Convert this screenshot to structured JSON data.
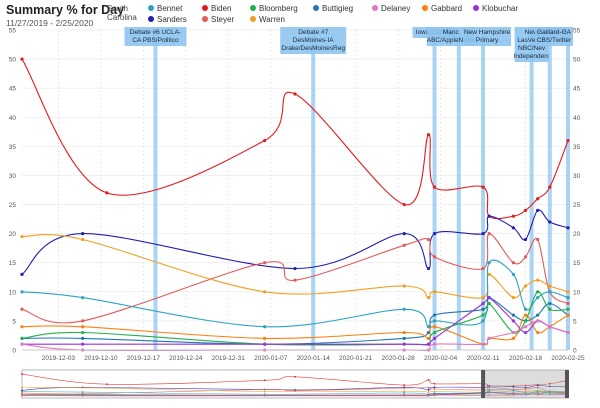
{
  "header": {
    "title": "Summary % for Day",
    "subtitle": "11/27/2019 - 2/25/2020",
    "state": "South Carolina"
  },
  "colors": {
    "Bennet": "#2aa4c4",
    "Biden": "#e31a1c",
    "Bloomberg": "#22b04a",
    "Buttigieg": "#1f77b4",
    "Delaney": "#e377c2",
    "Gabbard": "#ff7f0e",
    "Klobuchar": "#9b30d9",
    "Sanders": "#1f1fb4",
    "Steyer": "#e35a5a",
    "Warren": "#f0a020",
    "event_bar": "#8ec4f0"
  },
  "legend": [
    {
      "name": "Bennet",
      "color": "#2aa4c4"
    },
    {
      "name": "Biden",
      "color": "#e31a1c"
    },
    {
      "name": "Bloomberg",
      "color": "#22b04a"
    },
    {
      "name": "Buttigieg",
      "color": "#1f77b4"
    },
    {
      "name": "Delaney",
      "color": "#e377c2"
    },
    {
      "name": "Gabbard",
      "color": "#ff7f0e"
    },
    {
      "name": "Klobuchar",
      "color": "#9b30d9"
    },
    {
      "name": "Sanders",
      "color": "#1f1fb4"
    },
    {
      "name": "Steyer",
      "color": "#e35a5a"
    },
    {
      "name": "Warren",
      "color": "#f0a020"
    }
  ],
  "chart_data": {
    "type": "line",
    "title": "Summary % for Day",
    "subtitle": "11/27/2019 - 2/25/2020",
    "xlabel": "",
    "ylabel": "",
    "ylim": [
      0,
      55
    ],
    "y_ticks": [
      0,
      5,
      10,
      15,
      20,
      25,
      30,
      35,
      40,
      45,
      50,
      55
    ],
    "x_range": [
      "2019-11-27",
      "2020-02-25"
    ],
    "x_ticks": [
      "2019-12-03",
      "2019-12-10",
      "2019-12-17",
      "2019-12-24",
      "2019-12-31",
      "2020-01-07",
      "2020-01-14",
      "2020-01-21",
      "2020-01-28",
      "2020-02-04",
      "2020-02-11",
      "2020-02-18",
      "2020-02-25"
    ],
    "grid": true,
    "legend_position": "top",
    "events": [
      {
        "date": "2019-12-19",
        "label": [
          "Debate #6 UCLA-",
          "CA PBS/Politico"
        ]
      },
      {
        "date": "2020-01-14",
        "label": [
          "Debate #7",
          "DesMoines-IA",
          "Drake/DesMoinesReg"
        ]
      },
      {
        "date": "2020-02-03",
        "label": [
          "Iowa Caucus"
        ]
      },
      {
        "date": "2020-02-07",
        "label": [
          "Manc",
          "ABC/AppleNews"
        ]
      },
      {
        "date": "2020-02-11",
        "label": [
          "New Hampshire",
          "Primary"
        ]
      },
      {
        "date": "2020-02-19",
        "label": [
          "C",
          "LasVegas",
          "NBC/Nev",
          "Independent"
        ]
      },
      {
        "date": "2020-02-22",
        "label": [
          "Nevada Caucus"
        ]
      },
      {
        "date": "2020-02-25",
        "label": [
          "Gaillard-GA",
          "CBS/Twitter"
        ]
      }
    ],
    "series": [
      {
        "name": "Biden",
        "color": "#e31a1c",
        "points": [
          [
            "2019-11-27",
            50
          ],
          [
            "2019-12-11",
            27
          ],
          [
            "2020-01-06",
            36
          ],
          [
            "2020-01-11",
            44
          ],
          [
            "2020-01-29",
            25
          ],
          [
            "2020-02-02",
            37
          ],
          [
            "2020-02-03",
            28
          ],
          [
            "2020-02-11",
            28
          ],
          [
            "2020-02-12",
            23
          ],
          [
            "2020-02-16",
            23
          ],
          [
            "2020-02-18",
            24
          ],
          [
            "2020-02-20",
            26
          ],
          [
            "2020-02-22",
            28
          ],
          [
            "2020-02-25",
            36
          ]
        ]
      },
      {
        "name": "Sanders",
        "color": "#1f1fb4",
        "points": [
          [
            "2019-11-27",
            13
          ],
          [
            "2019-12-07",
            20
          ],
          [
            "2020-01-11",
            14
          ],
          [
            "2020-01-29",
            20
          ],
          [
            "2020-02-02",
            14
          ],
          [
            "2020-02-03",
            20
          ],
          [
            "2020-02-11",
            20
          ],
          [
            "2020-02-12",
            23
          ],
          [
            "2020-02-16",
            21
          ],
          [
            "2020-02-18",
            19
          ],
          [
            "2020-02-20",
            24
          ],
          [
            "2020-02-22",
            22
          ],
          [
            "2020-02-25",
            21
          ]
        ]
      },
      {
        "name": "Steyer",
        "color": "#e35a5a",
        "points": [
          [
            "2019-11-27",
            7
          ],
          [
            "2019-12-07",
            5
          ],
          [
            "2020-01-06",
            15
          ],
          [
            "2020-01-11",
            12
          ],
          [
            "2020-01-29",
            18
          ],
          [
            "2020-02-02",
            19
          ],
          [
            "2020-02-03",
            16
          ],
          [
            "2020-02-11",
            14
          ],
          [
            "2020-02-12",
            20
          ],
          [
            "2020-02-16",
            15
          ],
          [
            "2020-02-18",
            16
          ],
          [
            "2020-02-20",
            19
          ],
          [
            "2020-02-22",
            10
          ],
          [
            "2020-02-25",
            8
          ]
        ]
      },
      {
        "name": "Warren",
        "color": "#f0a020",
        "points": [
          [
            "2019-11-27",
            19.5
          ],
          [
            "2019-12-07",
            19
          ],
          [
            "2020-01-06",
            10
          ],
          [
            "2020-01-29",
            11
          ],
          [
            "2020-02-02",
            9
          ],
          [
            "2020-02-03",
            10
          ],
          [
            "2020-02-11",
            9
          ],
          [
            "2020-02-12",
            13
          ],
          [
            "2020-02-16",
            9
          ],
          [
            "2020-02-18",
            11
          ],
          [
            "2020-02-20",
            12
          ],
          [
            "2020-02-22",
            11
          ],
          [
            "2020-02-25",
            10
          ]
        ]
      },
      {
        "name": "Bennet",
        "color": "#2aa4c4",
        "points": [
          [
            "2019-11-27",
            10
          ],
          [
            "2019-12-07",
            9
          ],
          [
            "2020-01-06",
            4
          ],
          [
            "2020-01-29",
            7
          ],
          [
            "2020-02-02",
            4
          ],
          [
            "2020-02-03",
            5
          ],
          [
            "2020-02-11",
            5
          ],
          [
            "2020-02-12",
            15
          ],
          [
            "2020-02-16",
            13
          ],
          [
            "2020-02-18",
            7
          ],
          [
            "2020-02-20",
            9
          ],
          [
            "2020-02-22",
            10
          ],
          [
            "2020-02-25",
            9
          ]
        ]
      },
      {
        "name": "Buttigieg",
        "color": "#1f77b4",
        "points": [
          [
            "2019-11-27",
            2
          ],
          [
            "2019-12-07",
            2
          ],
          [
            "2020-01-06",
            1
          ],
          [
            "2020-01-29",
            2
          ],
          [
            "2020-02-02",
            3
          ],
          [
            "2020-02-03",
            6
          ],
          [
            "2020-02-11",
            7
          ],
          [
            "2020-02-12",
            9
          ],
          [
            "2020-02-16",
            6
          ],
          [
            "2020-02-18",
            5
          ],
          [
            "2020-02-20",
            6
          ],
          [
            "2020-02-22",
            8
          ],
          [
            "2020-02-25",
            6
          ]
        ]
      },
      {
        "name": "Gabbard",
        "color": "#ff7f0e",
        "points": [
          [
            "2019-11-27",
            4
          ],
          [
            "2019-12-07",
            4
          ],
          [
            "2020-01-06",
            2
          ],
          [
            "2020-01-29",
            3
          ],
          [
            "2020-02-02",
            2
          ],
          [
            "2020-02-03",
            4
          ],
          [
            "2020-02-11",
            1
          ],
          [
            "2020-02-12",
            2
          ],
          [
            "2020-02-16",
            2
          ],
          [
            "2020-02-18",
            6
          ],
          [
            "2020-02-20",
            3
          ],
          [
            "2020-02-22",
            4
          ],
          [
            "2020-02-25",
            6
          ]
        ]
      },
      {
        "name": "Bloomberg",
        "color": "#22b04a",
        "points": [
          [
            "2019-11-27",
            2
          ],
          [
            "2019-12-07",
            3
          ],
          [
            "2020-01-06",
            1
          ],
          [
            "2020-01-29",
            1
          ],
          [
            "2020-02-02",
            1
          ],
          [
            "2020-02-03",
            3
          ],
          [
            "2020-02-11",
            6
          ],
          [
            "2020-02-12",
            8
          ],
          [
            "2020-02-16",
            3
          ],
          [
            "2020-02-18",
            5
          ],
          [
            "2020-02-20",
            10
          ],
          [
            "2020-02-22",
            7
          ],
          [
            "2020-02-25",
            7
          ]
        ]
      },
      {
        "name": "Klobuchar",
        "color": "#9b30d9",
        "points": [
          [
            "2019-11-27",
            1
          ],
          [
            "2019-12-07",
            1
          ],
          [
            "2020-01-06",
            1
          ],
          [
            "2020-01-29",
            1
          ],
          [
            "2020-02-02",
            1
          ],
          [
            "2020-02-03",
            2
          ],
          [
            "2020-02-11",
            8
          ],
          [
            "2020-02-12",
            9
          ],
          [
            "2020-02-16",
            5
          ],
          [
            "2020-02-18",
            3
          ],
          [
            "2020-02-20",
            5
          ],
          [
            "2020-02-22",
            4
          ],
          [
            "2020-02-25",
            3
          ]
        ]
      },
      {
        "name": "Delaney",
        "color": "#e377c2",
        "points": [
          [
            "2019-11-27",
            1
          ],
          [
            "2019-12-07",
            0
          ],
          [
            "2020-01-06",
            0
          ],
          [
            "2020-01-29",
            0
          ],
          [
            "2020-02-02",
            0
          ],
          [
            "2020-02-03",
            1
          ],
          [
            "2020-02-11",
            1
          ],
          [
            "2020-02-12",
            2
          ],
          [
            "2020-02-16",
            3
          ],
          [
            "2020-02-18",
            4
          ],
          [
            "2020-02-20",
            5
          ],
          [
            "2020-02-22",
            4
          ],
          [
            "2020-02-25",
            3
          ]
        ]
      }
    ]
  }
}
